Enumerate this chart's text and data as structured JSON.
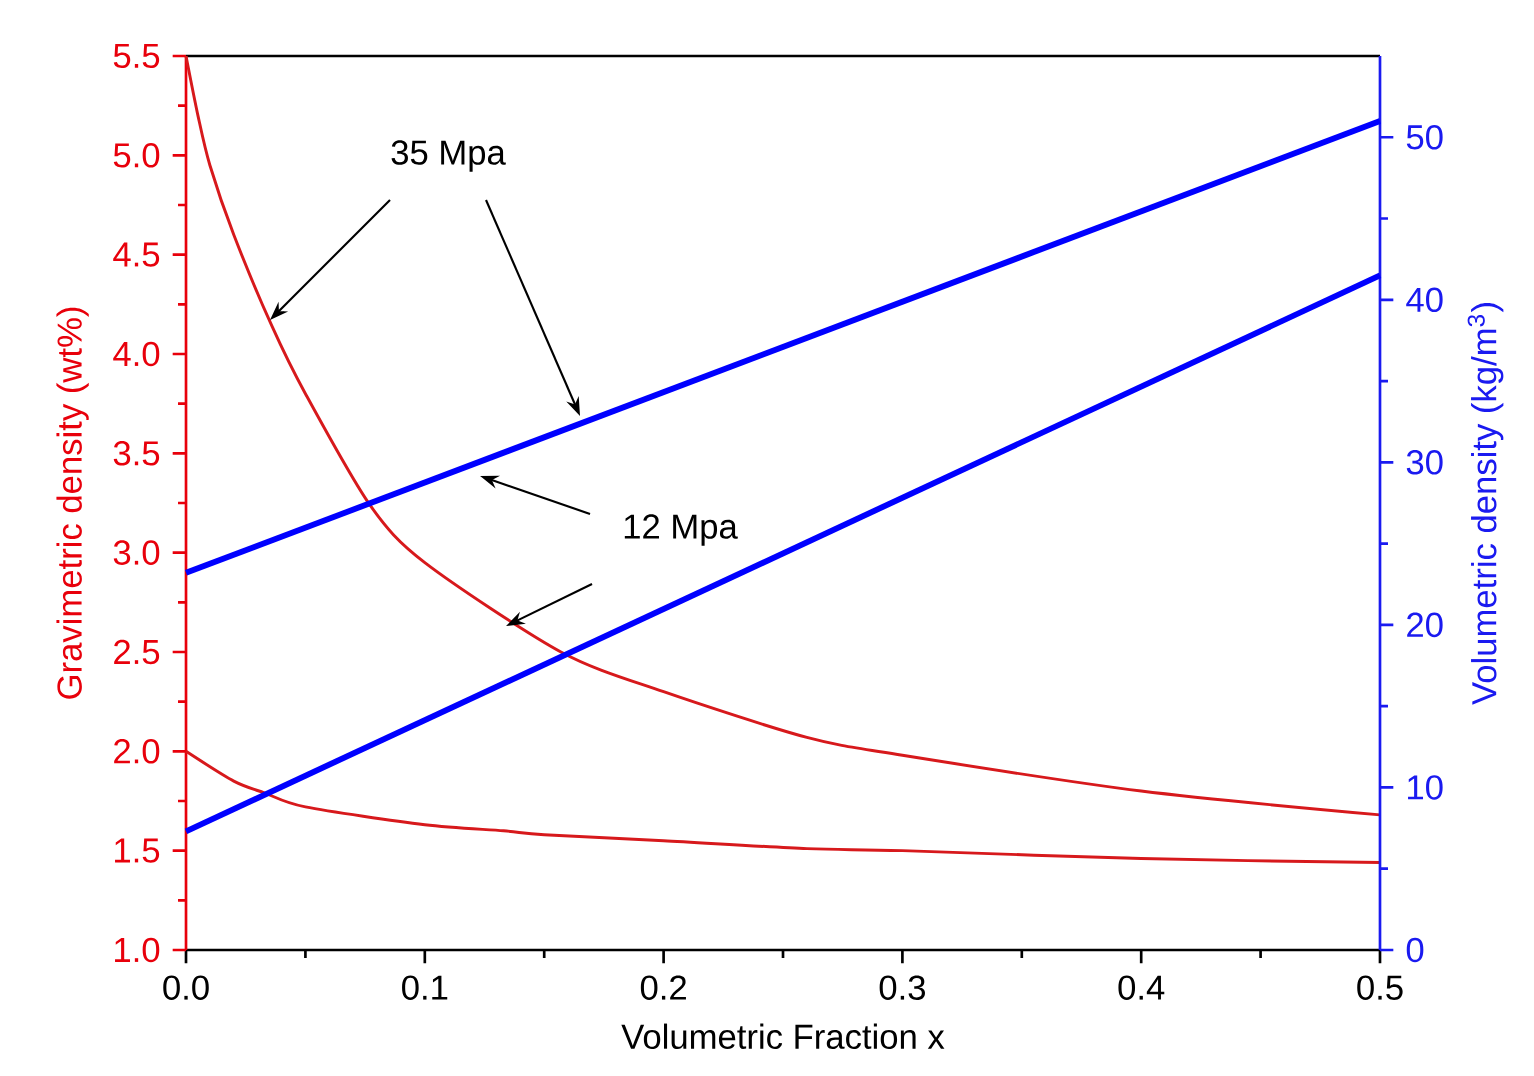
{
  "chart_data": {
    "type": "line",
    "xlabel": "Volumetric Fraction x",
    "ylabel": "Gravimetric density (wt%)",
    "y2label": "Volumetric density (kg/m$^{3}$)",
    "xlim": [
      0,
      0.5
    ],
    "xticks": [
      {
        "value": 0,
        "label": "0.0"
      },
      0.1,
      0.2,
      0.3,
      0.4,
      0.5
    ],
    "ylim": [
      1.0,
      5.5
    ],
    "yticks": [
      {
        "value": 1,
        "label": "1.0"
      },
      1.5,
      {
        "value": 2,
        "label": "2.0"
      },
      2.5,
      {
        "value": 3,
        "label": "3.0"
      },
      3.5,
      {
        "value": 4,
        "label": "4.0"
      },
      4.5,
      {
        "value": 5,
        "label": "5.0"
      },
      5.5
    ],
    "y2lim": [
      0,
      55
    ],
    "y2ticks": [
      0,
      10,
      20,
      30,
      40,
      50
    ],
    "series": [
      {
        "color": "#d7191c",
        "x": [
          0,
          0.005,
          0.01,
          0.02,
          0.036,
          0.05,
          0.077,
          0.1,
          0.157,
          0.2,
          0.26,
          0.3,
          0.4,
          0.5
        ],
        "values": [
          5.5,
          5.2,
          4.95,
          4.6,
          4.14,
          3.8,
          3.24,
          2.95,
          2.5,
          2.3,
          2.07,
          1.98,
          1.8,
          1.68
        ]
      },
      {
        "color": "#d7191c",
        "x": [
          0,
          0.02,
          0.033,
          0.05,
          0.1,
          0.133,
          0.15,
          0.2,
          0.26,
          0.3,
          0.4,
          0.5
        ],
        "values": [
          2.0,
          1.85,
          1.79,
          1.72,
          1.63,
          1.6,
          1.58,
          1.55,
          1.51,
          1.5,
          1.46,
          1.44
        ]
      },
      {
        "color": "#0000ff",
        "axis": "y2",
        "x": [
          0,
          0.5
        ],
        "values": [
          23.2,
          51.0
        ]
      },
      {
        "color": "#0000ff",
        "axis": "y2",
        "x": [
          0,
          0.5
        ],
        "values": [
          7.3,
          41.5
        ]
      }
    ],
    "annotations": [
      "35 Mpa",
      "12 Mpa"
    ],
    "grid": false,
    "legend": false,
    "marker": "none",
    "line_style": "solid"
  }
}
